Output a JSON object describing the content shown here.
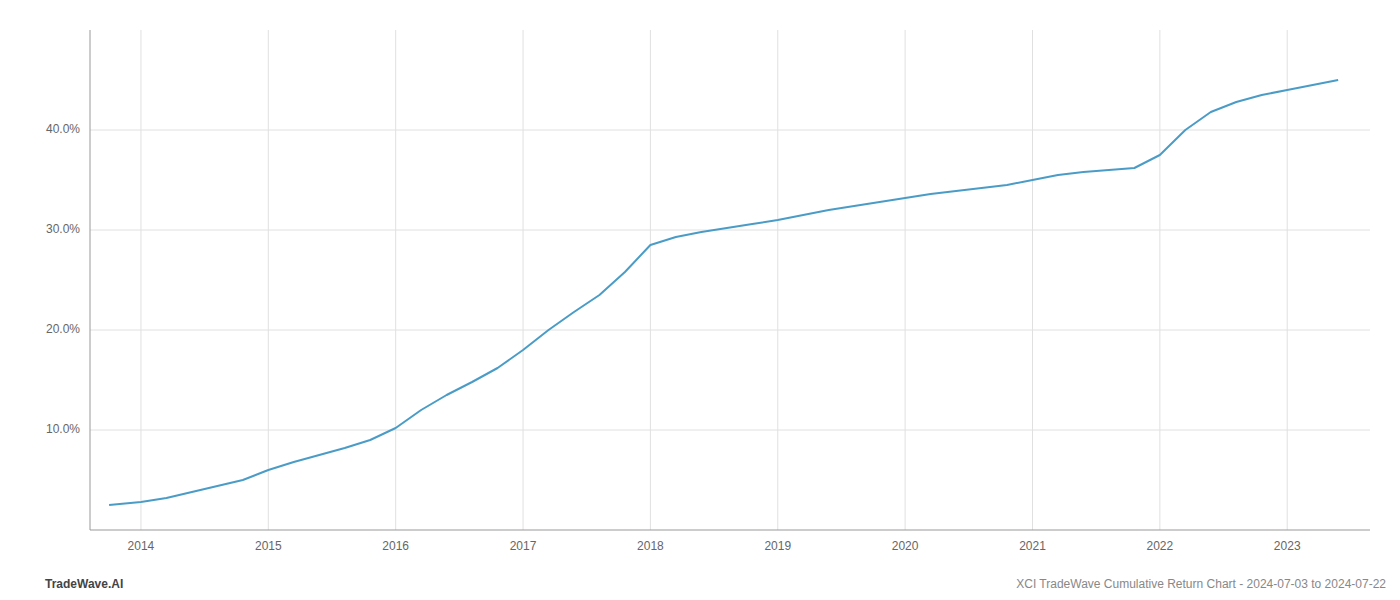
{
  "chart_data": {
    "type": "line",
    "x": [
      2013.75,
      2014.0,
      2014.2,
      2014.4,
      2014.6,
      2014.8,
      2015.0,
      2015.2,
      2015.4,
      2015.6,
      2015.8,
      2016.0,
      2016.2,
      2016.4,
      2016.6,
      2016.8,
      2017.0,
      2017.2,
      2017.4,
      2017.6,
      2017.8,
      2018.0,
      2018.05,
      2018.2,
      2018.4,
      2018.6,
      2018.8,
      2019.0,
      2019.2,
      2019.4,
      2019.6,
      2019.8,
      2020.0,
      2020.2,
      2020.4,
      2020.6,
      2020.8,
      2021.0,
      2021.2,
      2021.4,
      2021.6,
      2021.8,
      2022.0,
      2022.2,
      2022.4,
      2022.6,
      2022.8,
      2023.0,
      2023.2,
      2023.4
    ],
    "values": [
      2.5,
      2.8,
      3.2,
      3.8,
      4.4,
      5.0,
      6.0,
      6.8,
      7.5,
      8.2,
      9.0,
      10.2,
      12.0,
      13.5,
      14.8,
      16.2,
      18.0,
      20.0,
      21.8,
      23.5,
      25.8,
      28.5,
      28.7,
      29.3,
      29.8,
      30.2,
      30.6,
      31.0,
      31.5,
      32.0,
      32.4,
      32.8,
      33.2,
      33.6,
      33.9,
      34.2,
      34.5,
      35.0,
      35.5,
      35.8,
      36.0,
      36.2,
      37.5,
      40.0,
      41.8,
      42.8,
      43.5,
      44.0,
      44.5,
      45.0
    ],
    "color": "#4a9cc7",
    "xlim": [
      2013.6,
      2023.65
    ],
    "ylim": [
      0,
      50
    ],
    "xticks": [
      2014,
      2015,
      2016,
      2017,
      2018,
      2019,
      2020,
      2021,
      2022,
      2023
    ],
    "yticks": [
      {
        "value": 10.0,
        "label": "10.0%"
      },
      {
        "value": 20.0,
        "label": "20.0%"
      },
      {
        "value": 30.0,
        "label": "30.0%"
      },
      {
        "value": 40.0,
        "label": "40.0%"
      }
    ],
    "grid": true,
    "annotations": [
      "TradeWave.AI",
      "XCI TradeWave Cumulative Return Chart - 2024-07-03 to 2024-07-22"
    ]
  }
}
